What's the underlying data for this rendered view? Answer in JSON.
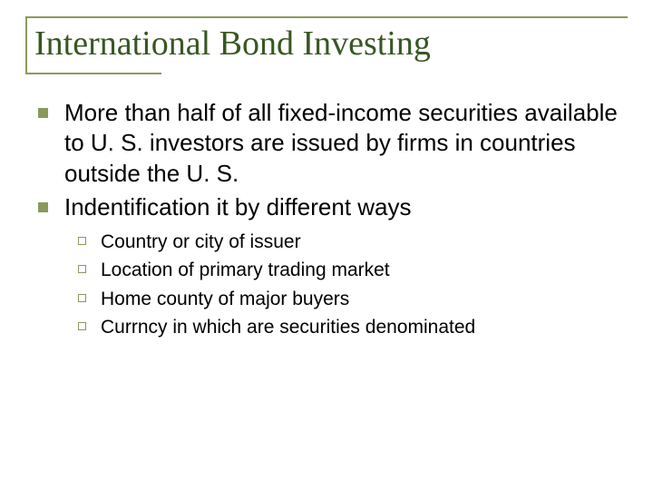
{
  "colors": {
    "accent": "#8a9a5b",
    "title_text": "#385723",
    "body_text": "#000000",
    "background": "#ffffff"
  },
  "title": "International Bond Investing",
  "bullets": [
    {
      "text": "More than half of all fixed-income securities available to U. S. investors are issued by firms in countries outside the U. S."
    },
    {
      "text": "Indentification it by different ways"
    }
  ],
  "sub_bullets": [
    {
      "text": "Country or city of issuer"
    },
    {
      "text": "Location of primary trading market"
    },
    {
      "text": "Home county of major buyers"
    },
    {
      "text": "Currncy in which are securities denominated"
    }
  ],
  "typography": {
    "title_font": "Times New Roman",
    "title_size_pt": 38,
    "body_font": "Arial",
    "body_size_pt": 26,
    "sub_size_pt": 21
  }
}
